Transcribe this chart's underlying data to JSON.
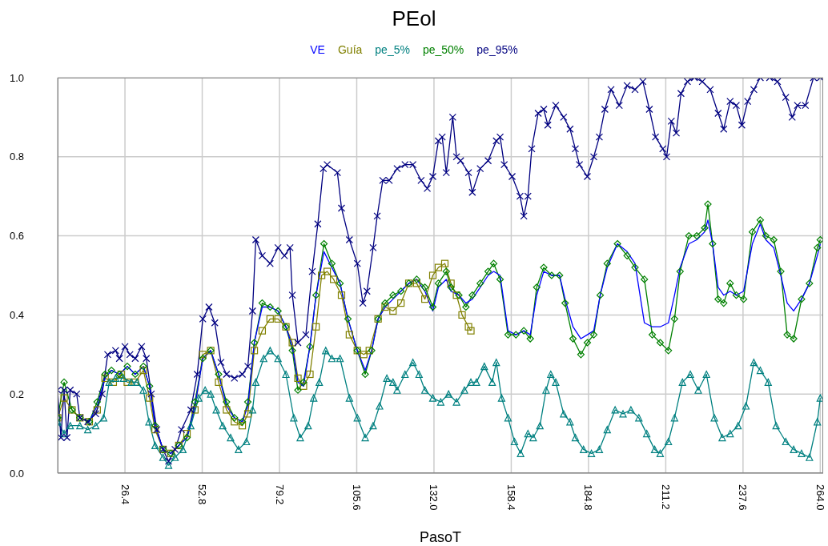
{
  "chart_data": {
    "type": "line",
    "title": "PEol",
    "xlabel": "PasoT",
    "legend": "top",
    "grid": true,
    "line_style": "solid",
    "xlim": [
      3.4,
      265
    ],
    "ylim": [
      0,
      1
    ],
    "xticks": [
      26.4,
      52.8,
      79.2,
      105.6,
      {
        "value": 132,
        "label": "132.0"
      },
      158.4,
      184.8,
      211.2,
      237.6,
      {
        "value": 264,
        "label": "264.0"
      }
    ],
    "yticks": [
      {
        "value": 0,
        "label": "0.0"
      },
      {
        "value": 0.2,
        "label": "0.2"
      },
      {
        "value": 0.4,
        "label": "0.4"
      },
      {
        "value": 0.6,
        "label": "0.6"
      },
      {
        "value": 0.8,
        "label": "0.8"
      },
      {
        "value": 1,
        "label": "1.0"
      }
    ],
    "series": [
      {
        "name": "VE",
        "color": "#0000ff",
        "marker": "none",
        "x": [
          14.2,
          16.9,
          19.6,
          21.8,
          24.5,
          27.2,
          29.9,
          32.7,
          34.8,
          36.7,
          39.4,
          42.1,
          44.8,
          47.6,
          50.3,
          53.0,
          55.7,
          58.4,
          61.1,
          63.8,
          66.5,
          68.4,
          70.6,
          73.3,
          76.0,
          78.7,
          81.4,
          83.6,
          85.5,
          87.4,
          89.6,
          91.7,
          94.4,
          97.1,
          99.9,
          102.6,
          105.8,
          108.5,
          110.7,
          112.9,
          115.3,
          118.0,
          120.7,
          123.4,
          126.1,
          128.9,
          131.6,
          133.5,
          136.2,
          137.8,
          140.5,
          142.9,
          145.1,
          147.8,
          150.5,
          152.4,
          154.6,
          157.3,
          160.0,
          162.7,
          164.9,
          167.1,
          169.5,
          172.2,
          174.9,
          176.8,
          179.5,
          182.2,
          184.4,
          186.6,
          188.8,
          191.2,
          194.7,
          198.0,
          200.7,
          203.9,
          206.6,
          209.3,
          212.1,
          214.2,
          216.1,
          219.1,
          221.8,
          224.5,
          225.6,
          227.2,
          229.1,
          231.0,
          233.2,
          235.3,
          237.8,
          240.8,
          243.5,
          245.4,
          248.1,
          250.5,
          252.7,
          254.9,
          257.6,
          260.3,
          263.0,
          264.0
        ],
        "values": [
          0.13,
          0.17,
          0.24,
          0.26,
          0.25,
          0.27,
          0.25,
          0.27,
          0.22,
          0.12,
          0.06,
          0.05,
          0.07,
          0.09,
          0.17,
          0.29,
          0.31,
          0.25,
          0.17,
          0.14,
          0.13,
          0.17,
          0.33,
          0.42,
          0.42,
          0.41,
          0.37,
          0.32,
          0.23,
          0.22,
          0.32,
          0.45,
          0.56,
          0.52,
          0.48,
          0.39,
          0.31,
          0.26,
          0.31,
          0.39,
          0.42,
          0.44,
          0.46,
          0.48,
          0.49,
          0.46,
          0.41,
          0.47,
          0.49,
          0.46,
          0.45,
          0.43,
          0.44,
          0.47,
          0.5,
          0.51,
          0.5,
          0.36,
          0.35,
          0.36,
          0.35,
          0.45,
          0.51,
          0.5,
          0.5,
          0.44,
          0.37,
          0.34,
          0.35,
          0.36,
          0.45,
          0.52,
          0.58,
          0.56,
          0.53,
          0.38,
          0.37,
          0.37,
          0.38,
          0.45,
          0.52,
          0.58,
          0.59,
          0.61,
          0.64,
          0.58,
          0.47,
          0.45,
          0.46,
          0.45,
          0.46,
          0.58,
          0.63,
          0.59,
          0.57,
          0.5,
          0.43,
          0.41,
          0.44,
          0.48,
          0.55,
          0.58
        ]
      },
      {
        "name": "Guía",
        "color": "#808000",
        "marker": "square",
        "x": [
          3.4,
          5.6,
          8.3,
          11.0,
          14.2,
          16.9,
          19.6,
          22.4,
          25.1,
          27.2,
          29.9,
          32.7,
          34.8,
          36.7,
          39.4,
          42.1,
          44.8,
          47.6,
          50.3,
          53.0,
          55.7,
          58.4,
          61.1,
          63.8,
          66.5,
          68.4,
          70.6,
          73.3,
          76.0,
          78.7,
          81.4,
          83.6,
          85.5,
          87.4,
          89.6,
          91.7,
          93.6,
          95.5,
          97.7,
          100.4,
          103.1,
          105.8,
          108.0,
          109.9,
          112.9,
          115.3,
          118.0,
          120.7,
          123.4,
          126.1,
          128.9,
          131.6,
          133.5,
          135.7,
          137.8,
          139.7,
          141.6,
          143.8,
          144.6
        ],
        "values": [
          0.14,
          0.19,
          0.16,
          0.14,
          0.13,
          0.16,
          0.24,
          0.23,
          0.25,
          0.23,
          0.23,
          0.26,
          0.19,
          0.11,
          0.06,
          0.05,
          0.07,
          0.1,
          0.16,
          0.3,
          0.31,
          0.23,
          0.16,
          0.13,
          0.12,
          0.15,
          0.31,
          0.36,
          0.39,
          0.39,
          0.37,
          0.33,
          0.24,
          0.22,
          0.25,
          0.37,
          0.5,
          0.51,
          0.49,
          0.45,
          0.35,
          0.31,
          0.3,
          0.31,
          0.39,
          0.42,
          0.41,
          0.43,
          0.48,
          0.48,
          0.44,
          0.5,
          0.52,
          0.53,
          0.48,
          0.45,
          0.4,
          0.37,
          0.36
        ]
      },
      {
        "name": "pe_5%",
        "color": "#008080",
        "marker": "triangle",
        "x": [
          3.4,
          5.6,
          7.7,
          11.0,
          13.7,
          16.4,
          19.1,
          21.0,
          23.2,
          25.9,
          28.6,
          30.5,
          32.7,
          34.6,
          36.7,
          39.4,
          41.3,
          43.5,
          46.2,
          48.9,
          51.6,
          53.8,
          55.7,
          57.6,
          59.8,
          62.5,
          65.2,
          67.9,
          70.0,
          71.1,
          73.8,
          76.0,
          78.7,
          81.4,
          84.1,
          86.3,
          89.0,
          90.9,
          92.8,
          95.0,
          97.1,
          99.9,
          103.1,
          105.8,
          108.5,
          111.2,
          113.4,
          115.9,
          118.0,
          119.4,
          122.1,
          124.8,
          126.9,
          128.9,
          131.6,
          134.3,
          137.0,
          139.7,
          142.4,
          144.6,
          146.5,
          149.2,
          151.9,
          153.3,
          155.1,
          157.3,
          159.5,
          161.6,
          164.1,
          165.9,
          168.2,
          170.3,
          171.9,
          173.6,
          176.3,
          178.5,
          180.3,
          183.1,
          185.8,
          188.5,
          191.2,
          193.9,
          196.6,
          199.3,
          202.0,
          204.7,
          207.4,
          209.3,
          212.1,
          214.2,
          216.9,
          219.6,
          222.3,
          225.1,
          227.8,
          230.5,
          233.2,
          235.9,
          238.6,
          241.3,
          243.5,
          246.2,
          248.9,
          252.2,
          254.9,
          257.6,
          260.3,
          263.0,
          264.0
        ],
        "values": [
          0.13,
          0.1,
          0.12,
          0.12,
          0.11,
          0.12,
          0.14,
          0.23,
          0.24,
          0.24,
          0.23,
          0.23,
          0.21,
          0.13,
          0.07,
          0.04,
          0.02,
          0.04,
          0.06,
          0.12,
          0.19,
          0.21,
          0.2,
          0.16,
          0.12,
          0.09,
          0.06,
          0.08,
          0.16,
          0.23,
          0.29,
          0.31,
          0.29,
          0.25,
          0.14,
          0.09,
          0.12,
          0.19,
          0.23,
          0.31,
          0.29,
          0.29,
          0.19,
          0.14,
          0.09,
          0.12,
          0.17,
          0.24,
          0.23,
          0.21,
          0.25,
          0.28,
          0.25,
          0.21,
          0.19,
          0.18,
          0.2,
          0.18,
          0.21,
          0.23,
          0.23,
          0.27,
          0.23,
          0.28,
          0.19,
          0.14,
          0.08,
          0.05,
          0.1,
          0.09,
          0.12,
          0.21,
          0.25,
          0.23,
          0.15,
          0.13,
          0.09,
          0.06,
          0.05,
          0.06,
          0.11,
          0.16,
          0.15,
          0.16,
          0.14,
          0.1,
          0.06,
          0.05,
          0.08,
          0.14,
          0.23,
          0.25,
          0.21,
          0.25,
          0.14,
          0.09,
          0.1,
          0.12,
          0.17,
          0.28,
          0.26,
          0.23,
          0.12,
          0.08,
          0.06,
          0.05,
          0.04,
          0.13,
          0.19
        ]
      },
      {
        "name": "pe_50%",
        "color": "#008000",
        "marker": "diamond",
        "x": [
          3.4,
          5.6,
          8.3,
          11.0,
          14.2,
          16.9,
          19.6,
          21.8,
          24.5,
          27.2,
          29.9,
          32.7,
          34.8,
          36.7,
          39.4,
          42.1,
          44.8,
          47.6,
          50.3,
          53.0,
          55.7,
          58.4,
          61.1,
          63.8,
          66.5,
          68.4,
          70.6,
          73.3,
          76.0,
          78.7,
          81.4,
          83.6,
          85.5,
          87.4,
          89.6,
          91.7,
          94.4,
          97.1,
          99.9,
          102.6,
          105.8,
          108.5,
          110.7,
          112.9,
          115.3,
          118.0,
          120.7,
          123.4,
          126.1,
          128.9,
          131.6,
          133.5,
          136.2,
          137.8,
          140.5,
          142.9,
          145.1,
          147.8,
          150.5,
          152.4,
          154.6,
          157.3,
          160.0,
          162.7,
          164.9,
          167.1,
          169.5,
          172.2,
          174.9,
          176.8,
          179.5,
          182.2,
          184.4,
          186.6,
          188.8,
          191.2,
          194.7,
          198.0,
          200.7,
          203.9,
          206.6,
          209.3,
          212.1,
          214.2,
          216.1,
          219.1,
          221.8,
          224.5,
          225.6,
          227.2,
          229.1,
          231.0,
          233.2,
          235.3,
          237.8,
          240.8,
          243.5,
          245.4,
          248.1,
          250.5,
          252.7,
          254.9,
          257.6,
          260.3,
          263.0,
          264.0
        ],
        "values": [
          0.14,
          0.23,
          0.16,
          0.14,
          0.13,
          0.18,
          0.25,
          0.26,
          0.25,
          0.27,
          0.25,
          0.27,
          0.22,
          0.12,
          0.06,
          0.05,
          0.07,
          0.09,
          0.18,
          0.29,
          0.31,
          0.25,
          0.18,
          0.14,
          0.13,
          0.18,
          0.33,
          0.43,
          0.42,
          0.41,
          0.37,
          0.31,
          0.21,
          0.23,
          0.32,
          0.45,
          0.58,
          0.53,
          0.48,
          0.39,
          0.31,
          0.25,
          0.31,
          0.39,
          0.43,
          0.45,
          0.46,
          0.48,
          0.49,
          0.47,
          0.42,
          0.48,
          0.51,
          0.47,
          0.45,
          0.42,
          0.45,
          0.48,
          0.51,
          0.53,
          0.49,
          0.35,
          0.35,
          0.36,
          0.34,
          0.47,
          0.52,
          0.5,
          0.5,
          0.43,
          0.34,
          0.3,
          0.33,
          0.35,
          0.45,
          0.53,
          0.58,
          0.55,
          0.52,
          0.49,
          0.35,
          0.33,
          0.31,
          0.39,
          0.51,
          0.6,
          0.6,
          0.62,
          0.68,
          0.58,
          0.44,
          0.43,
          0.48,
          0.45,
          0.44,
          0.61,
          0.64,
          0.6,
          0.59,
          0.51,
          0.35,
          0.34,
          0.44,
          0.48,
          0.57,
          0.59
        ]
      },
      {
        "name": "pe_95%",
        "color": "#000080",
        "marker": "cross",
        "x": [
          3.4,
          4.5,
          5.6,
          6.6,
          7.7,
          9.9,
          11.0,
          13.7,
          16.4,
          18.6,
          20.5,
          23.2,
          24.5,
          26.4,
          28.1,
          29.9,
          32.1,
          33.7,
          35.4,
          37.3,
          39.4,
          41.3,
          43.5,
          45.7,
          48.9,
          51.1,
          53.0,
          55.1,
          57.1,
          59.2,
          61.1,
          63.8,
          66.5,
          68.4,
          70.0,
          71.1,
          73.3,
          76.0,
          78.7,
          80.9,
          82.8,
          83.6,
          85.5,
          88.2,
          90.4,
          92.3,
          94.2,
          95.5,
          99.0,
          100.4,
          103.1,
          105.8,
          107.7,
          109.1,
          111.2,
          112.6,
          114.5,
          116.7,
          119.4,
          122.1,
          124.8,
          127.6,
          129.7,
          131.6,
          133.5,
          134.8,
          136.2,
          138.4,
          139.7,
          141.1,
          143.8,
          145.1,
          147.8,
          150.5,
          153.3,
          154.6,
          156.0,
          158.7,
          161.4,
          162.7,
          164.1,
          165.4,
          167.6,
          169.5,
          170.9,
          173.6,
          176.3,
          178.5,
          180.3,
          181.7,
          184.4,
          186.6,
          188.5,
          190.4,
          192.5,
          195.3,
          198.0,
          200.7,
          203.4,
          205.6,
          207.7,
          210.2,
          211.5,
          213.1,
          214.8,
          216.4,
          218.6,
          221.0,
          223.7,
          226.4,
          229.1,
          231.0,
          233.2,
          235.3,
          237.2,
          239.2,
          241.3,
          243.5,
          246.7,
          249.4,
          252.2,
          254.4,
          256.2,
          258.9,
          261.7,
          264.0
        ],
        "values": [
          0.21,
          0.09,
          0.21,
          0.09,
          0.21,
          0.2,
          0.14,
          0.13,
          0.15,
          0.2,
          0.3,
          0.31,
          0.29,
          0.32,
          0.3,
          0.29,
          0.32,
          0.29,
          0.2,
          0.11,
          0.06,
          0.03,
          0.06,
          0.11,
          0.16,
          0.25,
          0.39,
          0.42,
          0.38,
          0.28,
          0.25,
          0.24,
          0.25,
          0.27,
          0.41,
          0.59,
          0.55,
          0.53,
          0.57,
          0.55,
          0.57,
          0.45,
          0.33,
          0.35,
          0.51,
          0.63,
          0.77,
          0.78,
          0.76,
          0.67,
          0.59,
          0.53,
          0.43,
          0.46,
          0.57,
          0.65,
          0.74,
          0.74,
          0.77,
          0.78,
          0.78,
          0.74,
          0.72,
          0.75,
          0.84,
          0.85,
          0.76,
          0.9,
          0.8,
          0.79,
          0.76,
          0.71,
          0.77,
          0.79,
          0.84,
          0.85,
          0.78,
          0.75,
          0.7,
          0.65,
          0.7,
          0.82,
          0.91,
          0.92,
          0.88,
          0.93,
          0.9,
          0.87,
          0.82,
          0.78,
          0.75,
          0.8,
          0.85,
          0.92,
          0.97,
          0.93,
          0.98,
          0.97,
          0.99,
          0.92,
          0.85,
          0.82,
          0.8,
          0.89,
          0.86,
          0.96,
          0.99,
          1.0,
          0.99,
          0.97,
          0.91,
          0.87,
          0.94,
          0.93,
          0.88,
          0.94,
          0.97,
          1.0,
          1.0,
          0.99,
          0.95,
          0.9,
          0.93,
          0.93,
          1.0,
          1.0
        ]
      }
    ]
  }
}
